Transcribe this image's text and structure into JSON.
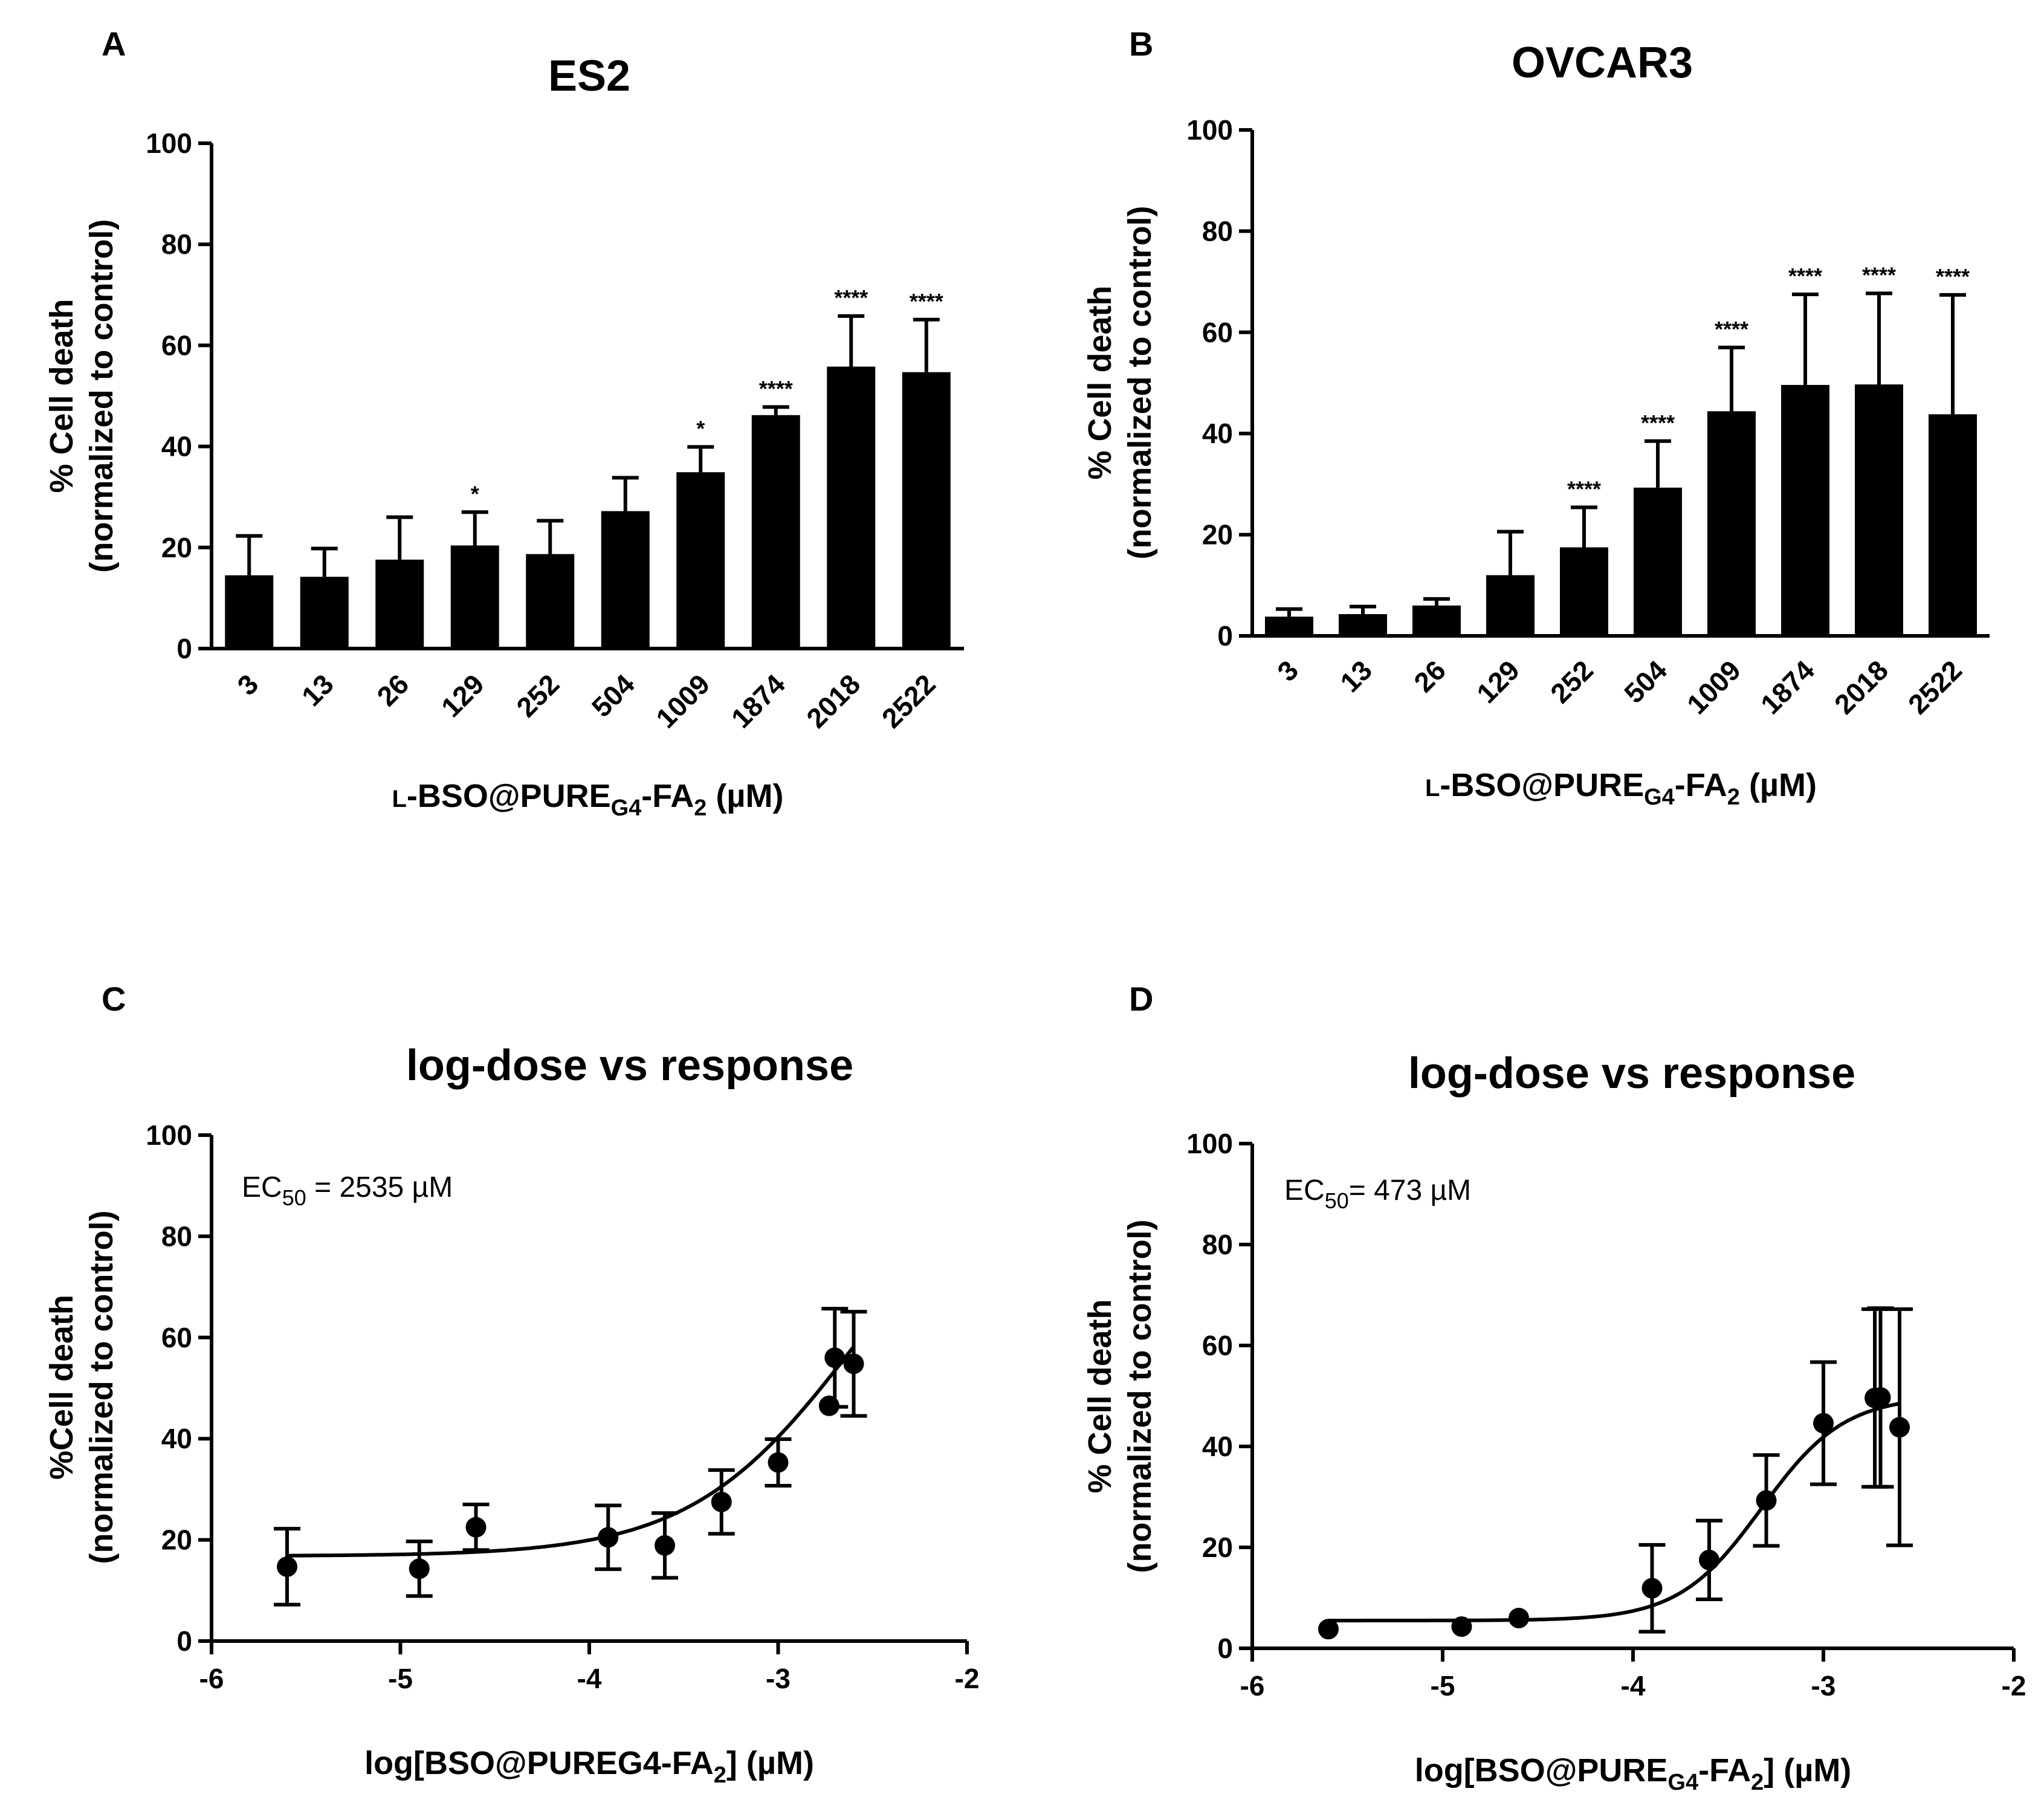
{
  "chart_data": [
    {
      "panel": "A",
      "type": "bar",
      "title": "ES2",
      "ylabel": [
        "% Cell death",
        "(normalized to control)"
      ],
      "xlabel": "L-BSO@PURE_G4-FA_2 (µM)",
      "xlabel_parts": {
        "prefix": "L-BSO@PURE",
        "sub1": "G4",
        "mid": "-FA",
        "sub2": "2",
        "suffix": " (µM)"
      },
      "ylim": [
        0,
        100
      ],
      "yticks": [
        "0",
        "20",
        "40",
        "60",
        "80",
        "100"
      ],
      "categories": [
        "3",
        "13",
        "26",
        "129",
        "252",
        "504",
        "1009",
        "1874",
        "2018",
        "2522"
      ],
      "values": [
        14.5,
        14.2,
        17.6,
        20.4,
        18.7,
        27.2,
        34.9,
        46.2,
        55.8,
        54.7
      ],
      "errors": [
        7.8,
        5.6,
        8.4,
        6.6,
        6.6,
        6.6,
        5.0,
        1.6,
        10.0,
        10.4
      ],
      "significance": [
        "",
        "",
        "",
        "*",
        "",
        "",
        "*",
        "****",
        "****",
        "****"
      ]
    },
    {
      "panel": "B",
      "type": "bar",
      "title": "OVCAR3",
      "ylabel": [
        "% Cell death",
        "(normalized to control)"
      ],
      "xlabel": "L-BSO@PURE_G4-FA_2 (µM)",
      "xlabel_parts": {
        "prefix": "L-BSO@PURE",
        "sub1": "G4",
        "mid": "-FA",
        "sub2": "2",
        "suffix": " (µM)"
      },
      "ylim": [
        0,
        100
      ],
      "yticks": [
        "0",
        "20",
        "40",
        "60",
        "80",
        "100"
      ],
      "categories": [
        "3",
        "13",
        "26",
        "129",
        "252",
        "504",
        "1009",
        "1874",
        "2018",
        "2522"
      ],
      "values": [
        3.8,
        4.3,
        6.0,
        12.0,
        17.5,
        29.3,
        44.4,
        49.6,
        49.7,
        43.8
      ],
      "errors": [
        1.5,
        1.5,
        1.3,
        8.6,
        7.9,
        9.2,
        12.6,
        17.9,
        18.0,
        23.6
      ],
      "significance": [
        "",
        "",
        "",
        "",
        "****",
        "****",
        "****",
        "****",
        "****",
        "****"
      ]
    },
    {
      "panel": "C",
      "type": "scatter",
      "title": "log-dose vs response",
      "annotation": {
        "prefix": "EC",
        "sub": "50",
        "suffix": " = 2535 µM"
      },
      "ylabel": [
        "%Cell death",
        "(normalized to control)"
      ],
      "xlabel": "log[BSO@PUREG4-FA_2] (µM)",
      "xlabel_parts": {
        "prefix": "log[BSO@PUREG4-FA",
        "sub2": "2",
        "suffix": "] (µM)"
      },
      "xlim": [
        -6,
        -2
      ],
      "ylim": [
        0,
        100
      ],
      "xticks": [
        "-6",
        "-5",
        "-4",
        "-3",
        "-2"
      ],
      "yticks": [
        "0",
        "20",
        "40",
        "60",
        "80",
        "100"
      ],
      "x": [
        -5.6,
        -4.9,
        -4.6,
        -3.9,
        -3.6,
        -3.3,
        -3.0,
        -2.73,
        -2.7,
        -2.6
      ],
      "y": [
        14.7,
        14.3,
        22.5,
        20.5,
        18.9,
        27.5,
        35.3,
        46.5,
        56.0,
        54.8
      ],
      "errors": [
        7.5,
        5.4,
        4.5,
        6.3,
        6.4,
        6.3,
        4.6,
        0.0,
        9.7,
        10.3
      ],
      "fit": {
        "bottom": 16.8,
        "top": 100,
        "logEC50": -2.596,
        "hill": 1.0
      }
    },
    {
      "panel": "D",
      "type": "scatter",
      "title": "log-dose vs response",
      "annotation": {
        "prefix": "EC",
        "sub": "50",
        "suffix": "= 473 µM"
      },
      "ylabel": [
        "% Cell death",
        "(normalized to control)"
      ],
      "xlabel": "log[BSO@PURE_G4-FA_2] (µM)",
      "xlabel_parts": {
        "prefix": "log[BSO@PURE",
        "sub1": "G4",
        "mid": "-FA",
        "sub2": "2",
        "suffix": "] (µM)"
      },
      "xlim": [
        -6,
        -2
      ],
      "ylim": [
        0,
        100
      ],
      "xticks": [
        "-6",
        "-5",
        "-4",
        "-3",
        "-2"
      ],
      "yticks": [
        "0",
        "20",
        "40",
        "60",
        "80",
        "100"
      ],
      "x": [
        -5.6,
        -4.9,
        -4.6,
        -3.9,
        -3.6,
        -3.3,
        -3.0,
        -2.73,
        -2.7,
        -2.6
      ],
      "y": [
        3.8,
        4.3,
        6.0,
        11.9,
        17.5,
        29.3,
        44.6,
        49.6,
        49.7,
        43.8
      ],
      "errors": [
        0.0,
        0.0,
        0.0,
        8.6,
        7.8,
        9.0,
        12.1,
        17.6,
        17.7,
        23.4
      ],
      "fit": {
        "bottom": 5.5,
        "top": 50,
        "logEC50": -3.325,
        "hill": 2.0
      }
    }
  ]
}
